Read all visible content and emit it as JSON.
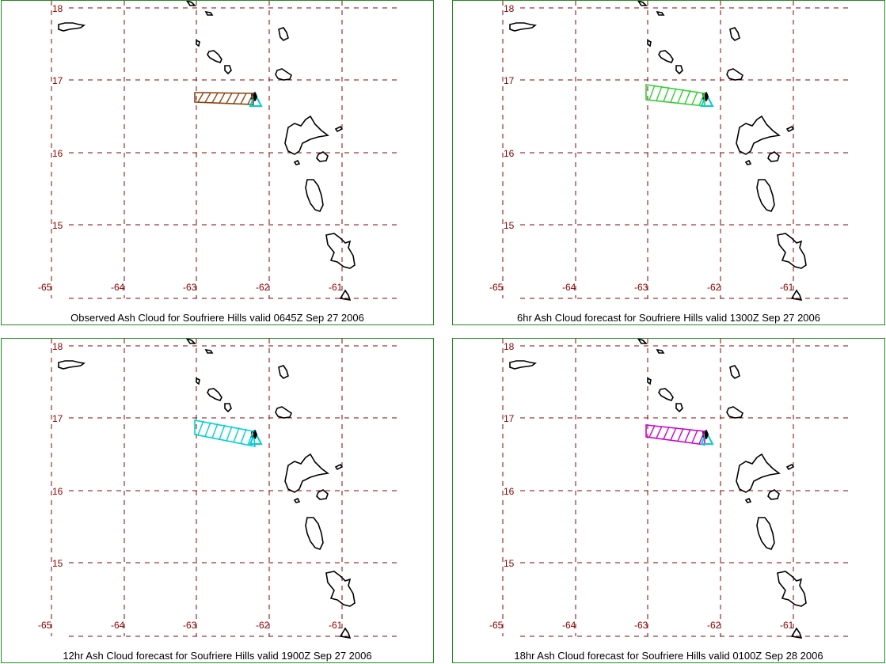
{
  "map": {
    "lat_labels": [
      "18",
      "17",
      "16",
      "15"
    ],
    "lon_labels": [
      "-65",
      "-64",
      "-63",
      "-62",
      "-61"
    ],
    "grid_color": "#8b0000",
    "border_color": "#228b22",
    "volcano_marker_color": "#00ced1"
  },
  "panels": [
    {
      "caption": "Observed Ash Cloud for Soufriere  Hills valid 0645Z Sep 27 2006",
      "ash_color": "#8b4513"
    },
    {
      "caption": "6hr Ash Cloud forecast for Soufriere  Hills valid 1300Z Sep 27 2006",
      "ash_color": "#32cd32"
    },
    {
      "caption": "12hr Ash Cloud forecast for Soufriere  Hills valid 1900Z Sep 27 2006",
      "ash_color": "#00ced1"
    },
    {
      "caption": "18hr Ash Cloud forecast for Soufriere  Hills valid 0100Z Sep 28 2006",
      "ash_color": "#cc00cc"
    }
  ]
}
